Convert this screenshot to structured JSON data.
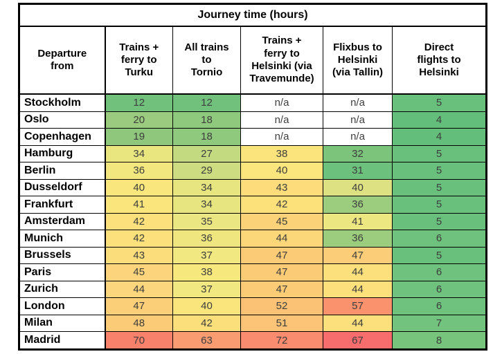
{
  "title": "Journey time (hours)",
  "header": {
    "col0": "Departure\nfrom",
    "col1": "Trains +\nferry to\nTurku",
    "col2": "All trains\nto\nTornio",
    "col3": "Trains +\nferry to\nHelsinki (via\nTravemunde)",
    "col4": "Flixbus to\nHelsinki\n(via Tallin)",
    "col5": "Direct\nflights to\nHelsinki"
  },
  "palette": {
    "scale_green_min": "#63BE7B",
    "scale_yellow_mid": "#FFEB84",
    "scale_red_max": "#F8696B",
    "na_background": "#FFFFFF",
    "border": "#000000"
  },
  "chart_data": {
    "type": "table",
    "title": "Journey time (hours)",
    "units": "hours",
    "columns": [
      "Departure from",
      "Trains + ferry to Turku",
      "All trains to Tornio",
      "Trains + ferry to Helsinki (via Travemunde)",
      "Flixbus to Helsinki (via Tallin)",
      "Direct flights to Helsinki"
    ],
    "rows": [
      {
        "city": "Stockholm",
        "values": [
          "12",
          "12",
          "n/a",
          "n/a",
          "5"
        ],
        "colors": [
          "#71C17C",
          "#71C17C",
          "#FFFFFF",
          "#FFFFFF",
          "#68C07C"
        ]
      },
      {
        "city": "Oslo",
        "values": [
          "20",
          "18",
          "n/a",
          "n/a",
          "4"
        ],
        "colors": [
          "#9ACB7E",
          "#8FC97D",
          "#FFFFFF",
          "#FFFFFF",
          "#63BE7B"
        ]
      },
      {
        "city": "Copenhagen",
        "values": [
          "19",
          "18",
          "n/a",
          "n/a",
          "4"
        ],
        "colors": [
          "#8FC87D",
          "#8FC97D",
          "#FFFFFF",
          "#FFFFFF",
          "#63BE7B"
        ]
      },
      {
        "city": "Hamburg",
        "values": [
          "34",
          "27",
          "38",
          "32",
          "5"
        ],
        "colors": [
          "#E9E680",
          "#C4DA80",
          "#FBE47C",
          "#7CC47C",
          "#68C07C"
        ]
      },
      {
        "city": "Berlin",
        "values": [
          "36",
          "29",
          "40",
          "31",
          "5"
        ],
        "colors": [
          "#F2E77F",
          "#CDDC80",
          "#FBE57D",
          "#6CC17D",
          "#68C07C"
        ]
      },
      {
        "city": "Dusseldorf",
        "values": [
          "40",
          "34",
          "43",
          "40",
          "5"
        ],
        "colors": [
          "#F9E67D",
          "#E6E580",
          "#FCDC7B",
          "#DDE182",
          "#68C07C"
        ]
      },
      {
        "city": "Frankfurt",
        "values": [
          "41",
          "34",
          "42",
          "36",
          "5"
        ],
        "colors": [
          "#FAE47C",
          "#E6E580",
          "#FCE07A",
          "#9CCD7E",
          "#68C07C"
        ]
      },
      {
        "city": "Amsterdam",
        "values": [
          "42",
          "35",
          "45",
          "41",
          "5"
        ],
        "colors": [
          "#FBE07B",
          "#EAE681",
          "#FBD278",
          "#EDE782",
          "#68C07C"
        ]
      },
      {
        "city": "Munich",
        "values": [
          "42",
          "36",
          "44",
          "36",
          "6"
        ],
        "colors": [
          "#FBE07B",
          "#F0E680",
          "#FCD77A",
          "#9CCD7E",
          "#6EC27D"
        ]
      },
      {
        "city": "Brussels",
        "values": [
          "43",
          "37",
          "47",
          "47",
          "5"
        ],
        "colors": [
          "#FBDD7B",
          "#F1E881",
          "#FCCB76",
          "#FBCD78",
          "#68C07C"
        ]
      },
      {
        "city": "Paris",
        "values": [
          "45",
          "38",
          "47",
          "44",
          "6"
        ],
        "colors": [
          "#FBD47B",
          "#F7E87E",
          "#FCCB76",
          "#FCE07B",
          "#6EC27D"
        ]
      },
      {
        "city": "Zurich",
        "values": [
          "44",
          "37",
          "47",
          "44",
          "6"
        ],
        "colors": [
          "#FCD67C",
          "#F1E881",
          "#FCCB76",
          "#FCE07B",
          "#6EC27D"
        ]
      },
      {
        "city": "London",
        "values": [
          "47",
          "40",
          "52",
          "57",
          "6"
        ],
        "colors": [
          "#FBCE78",
          "#F9E57C",
          "#FBC276",
          "#F9926D",
          "#6EC27D"
        ]
      },
      {
        "city": "Milan",
        "values": [
          "48",
          "42",
          "51",
          "44",
          "7"
        ],
        "colors": [
          "#FBCB77",
          "#FBDF7B",
          "#FBC476",
          "#FCE07B",
          "#72C37D"
        ]
      },
      {
        "city": "Madrid",
        "values": [
          "70",
          "63",
          "72",
          "67",
          "8"
        ],
        "colors": [
          "#F8816B",
          "#FA9C72",
          "#F98B6F",
          "#F76C6C",
          "#77C47C"
        ]
      }
    ]
  }
}
